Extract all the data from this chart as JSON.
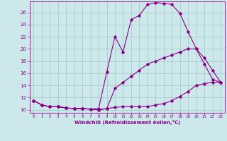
{
  "xlabel": "Windchill (Refroidissement éolien,°C)",
  "bg_color": "#cce8ea",
  "grid_color": "#aacccc",
  "line_color": "#880088",
  "xlim": [
    -0.5,
    23.5
  ],
  "ylim": [
    9.5,
    27.8
  ],
  "yticks": [
    10,
    12,
    14,
    16,
    18,
    20,
    22,
    24,
    26
  ],
  "xticks": [
    0,
    1,
    2,
    3,
    4,
    5,
    6,
    7,
    8,
    9,
    10,
    11,
    12,
    13,
    14,
    15,
    16,
    17,
    18,
    19,
    20,
    21,
    22,
    23
  ],
  "series1": [
    11.5,
    10.8,
    10.5,
    10.5,
    10.3,
    10.2,
    10.2,
    10.1,
    10.0,
    10.2,
    10.4,
    10.5,
    10.5,
    10.5,
    10.5,
    10.8,
    11.0,
    11.5,
    12.2,
    13.0,
    14.0,
    14.3,
    14.5,
    14.5
  ],
  "series2": [
    11.5,
    10.8,
    10.5,
    10.5,
    10.3,
    10.2,
    10.2,
    10.1,
    10.2,
    16.2,
    22.0,
    19.5,
    24.8,
    25.5,
    27.3,
    27.6,
    27.5,
    27.3,
    25.8,
    22.8,
    20.0,
    17.5,
    15.0,
    14.5
  ],
  "series3": [
    11.5,
    10.8,
    10.5,
    10.5,
    10.3,
    10.2,
    10.2,
    10.1,
    10.0,
    10.2,
    13.5,
    14.5,
    15.5,
    16.5,
    17.5,
    18.0,
    18.5,
    19.0,
    19.5,
    20.0,
    20.0,
    18.5,
    16.5,
    14.5
  ]
}
